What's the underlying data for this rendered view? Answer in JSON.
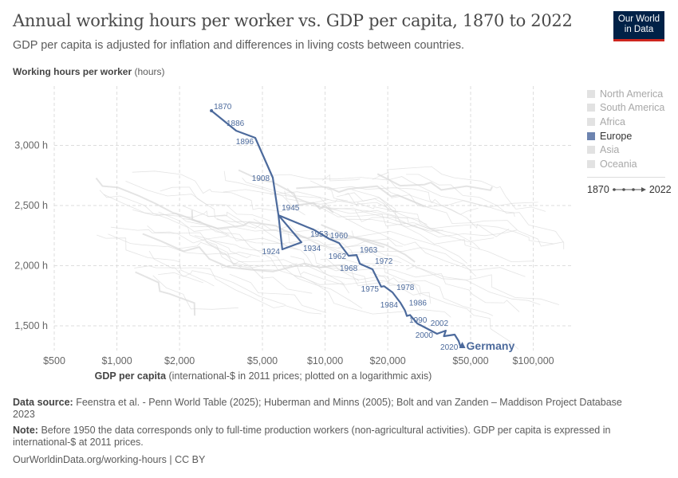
{
  "header": {
    "title": "Annual working hours per worker vs. GDP per capita, 1870 to 2022",
    "subtitle": "GDP per capita is adjusted for inflation and differences in living costs between countries.",
    "logo_line1": "Our World",
    "logo_line2": "in Data"
  },
  "chart_data": {
    "type": "scatter",
    "title": "Annual working hours per worker vs. GDP per capita, 1870 to 2022",
    "ylabel_bold": "Working hours per worker",
    "ylabel_unit": "(hours)",
    "xlabel_bold": "GDP per capita",
    "xlabel_rest": "(international-$ in 2011 prices; plotted on a logarithmic axis)",
    "x_scale": "log",
    "x_ticks": [
      {
        "v": 500,
        "label": "$500"
      },
      {
        "v": 1000,
        "label": "$1,000"
      },
      {
        "v": 2000,
        "label": "$2,000"
      },
      {
        "v": 5000,
        "label": "$5,000"
      },
      {
        "v": 10000,
        "label": "$10,000"
      },
      {
        "v": 20000,
        "label": "$20,000"
      },
      {
        "v": 50000,
        "label": "$50,000"
      },
      {
        "v": 100000,
        "label": "$100,000"
      }
    ],
    "y_ticks": [
      {
        "v": 1500,
        "label": "1,500 h"
      },
      {
        "v": 2000,
        "label": "2,000 h"
      },
      {
        "v": 2500,
        "label": "2,500 h"
      },
      {
        "v": 3000,
        "label": "3,000 h"
      }
    ],
    "xlim": [
      500,
      154000
    ],
    "ylim": [
      1295,
      3480
    ],
    "grid": true,
    "highlight_color": "#4c6a9c",
    "background_color": "#d9d9d9",
    "series": [
      {
        "name": "Germany",
        "points": [
          {
            "year": 1870,
            "x": 2845,
            "y": 3288,
            "label": "1870"
          },
          {
            "year": 1886,
            "x": 3740,
            "y": 3122,
            "label": "1886"
          },
          {
            "year": 1896,
            "x": 4620,
            "y": 3063,
            "label": "1896"
          },
          {
            "year": 1908,
            "x": 5610,
            "y": 2732,
            "label": "1908"
          },
          {
            "year": 1913,
            "x": 5970,
            "y": 2420
          },
          {
            "year": 1924,
            "x": 6230,
            "y": 2136,
            "label": "1924"
          },
          {
            "year": 1934,
            "x": 7700,
            "y": 2195,
            "label": "1934"
          },
          {
            "year": 1945,
            "x": 5970,
            "y": 2420,
            "label": "1945"
          },
          {
            "year": 1953,
            "x": 8200,
            "y": 2321,
            "label": "1953"
          },
          {
            "year": 1955,
            "x": 8800,
            "y": 2300
          },
          {
            "year": 1958,
            "x": 10490,
            "y": 2222
          },
          {
            "year": 1960,
            "x": 11660,
            "y": 2189,
            "label": "1960"
          },
          {
            "year": 1962,
            "x": 12970,
            "y": 2083,
            "label": "1962"
          },
          {
            "year": 1963,
            "x": 14160,
            "y": 2089,
            "label": "1963"
          },
          {
            "year": 1968,
            "x": 14700,
            "y": 2016,
            "label": "1968"
          },
          {
            "year": 1972,
            "x": 16900,
            "y": 1970,
            "label": "1972"
          },
          {
            "year": 1975,
            "x": 18600,
            "y": 1825,
            "label": "1975"
          },
          {
            "year": 1976,
            "x": 19200,
            "y": 1830
          },
          {
            "year": 1978,
            "x": 21080,
            "y": 1778,
            "label": "1978"
          },
          {
            "year": 1984,
            "x": 23000,
            "y": 1692,
            "label": "1984"
          },
          {
            "year": 1986,
            "x": 24200,
            "y": 1628,
            "label": "1986"
          },
          {
            "year": 1987,
            "x": 24700,
            "y": 1582
          },
          {
            "year": 1988,
            "x": 25600,
            "y": 1590
          },
          {
            "year": 1990,
            "x": 27700,
            "y": 1520,
            "label": "1990"
          },
          {
            "year": 2000,
            "x": 34500,
            "y": 1434,
            "label": "2000"
          },
          {
            "year": 2002,
            "x": 38000,
            "y": 1460,
            "label": "2002"
          },
          {
            "year": 2004,
            "x": 37200,
            "y": 1414
          },
          {
            "year": 2008,
            "x": 41900,
            "y": 1427
          },
          {
            "year": 2012,
            "x": 43800,
            "y": 1374
          },
          {
            "year": 2020,
            "x": 44700,
            "y": 1328,
            "label": "2020"
          },
          {
            "year": 2022,
            "x": 45600,
            "y": 1341
          }
        ]
      }
    ],
    "end_label": "Germany"
  },
  "legend": {
    "items": [
      {
        "label": "North America",
        "active": false
      },
      {
        "label": "South America",
        "active": false
      },
      {
        "label": "Africa",
        "active": false
      },
      {
        "label": "Europe",
        "active": true
      },
      {
        "label": "Asia",
        "active": false
      },
      {
        "label": "Oceania",
        "active": false
      }
    ],
    "time_start": "1870",
    "time_end": "2022"
  },
  "footer": {
    "source_label": "Data source:",
    "source_text": "Feenstra et al. - Penn World Table (2025); Huberman and Minns (2005); Bolt and van Zanden – Maddison Project Database 2023",
    "note_label": "Note:",
    "note_text": "Before 1950 the data corresponds only to full-time production workers (non-agricultural activities). GDP per capita is expressed in international-$ at 2011 prices.",
    "credit": "OurWorldinData.org/working-hours | CC BY"
  }
}
